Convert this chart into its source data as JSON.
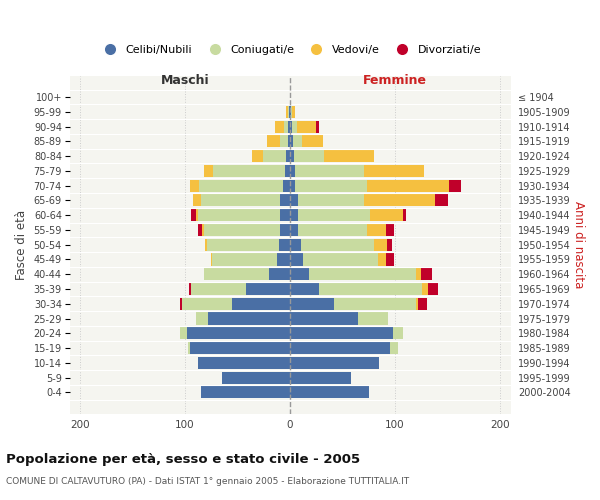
{
  "age_groups": [
    "0-4",
    "5-9",
    "10-14",
    "15-19",
    "20-24",
    "25-29",
    "30-34",
    "35-39",
    "40-44",
    "45-49",
    "50-54",
    "55-59",
    "60-64",
    "65-69",
    "70-74",
    "75-79",
    "80-84",
    "85-89",
    "90-94",
    "95-99",
    "100+"
  ],
  "birth_years": [
    "2000-2004",
    "1995-1999",
    "1990-1994",
    "1985-1989",
    "1980-1984",
    "1975-1979",
    "1970-1974",
    "1965-1969",
    "1960-1964",
    "1955-1959",
    "1950-1954",
    "1945-1949",
    "1940-1944",
    "1935-1939",
    "1930-1934",
    "1925-1929",
    "1920-1924",
    "1915-1919",
    "1910-1914",
    "1905-1909",
    "≤ 1904"
  ],
  "colors": {
    "celibi": "#4a6fa5",
    "coniugati": "#c8dba0",
    "vedovi": "#f5c040",
    "divorziati": "#c0002a"
  },
  "maschi": {
    "celibi": [
      85,
      65,
      88,
      95,
      98,
      78,
      55,
      42,
      20,
      12,
      11,
      10,
      10,
      10,
      7,
      5,
      4,
      2,
      2,
      1,
      0
    ],
    "coniugati": [
      0,
      0,
      0,
      2,
      7,
      12,
      48,
      52,
      62,
      62,
      68,
      72,
      78,
      75,
      80,
      68,
      22,
      8,
      4,
      1,
      0
    ],
    "vedovi": [
      0,
      0,
      0,
      0,
      0,
      0,
      0,
      0,
      0,
      1,
      2,
      2,
      2,
      7,
      8,
      9,
      10,
      12,
      8,
      2,
      0
    ],
    "divorziati": [
      0,
      0,
      0,
      0,
      0,
      0,
      2,
      2,
      0,
      0,
      0,
      4,
      4,
      0,
      0,
      0,
      0,
      0,
      0,
      0,
      0
    ]
  },
  "femmine": {
    "celibi": [
      75,
      58,
      85,
      95,
      98,
      65,
      42,
      28,
      18,
      12,
      10,
      8,
      8,
      8,
      5,
      5,
      4,
      3,
      2,
      1,
      0
    ],
    "coniugati": [
      0,
      0,
      0,
      8,
      10,
      28,
      78,
      98,
      102,
      72,
      70,
      65,
      68,
      62,
      68,
      65,
      28,
      8,
      5,
      1,
      0
    ],
    "vedovi": [
      0,
      0,
      0,
      0,
      0,
      0,
      2,
      5,
      5,
      7,
      12,
      18,
      32,
      68,
      78,
      58,
      48,
      20,
      18,
      3,
      0
    ],
    "divorziati": [
      0,
      0,
      0,
      0,
      0,
      0,
      8,
      10,
      10,
      8,
      5,
      8,
      2,
      12,
      12,
      0,
      0,
      0,
      3,
      0,
      0
    ]
  },
  "xlim": 210,
  "title": "Popolazione per età, sesso e stato civile - 2005",
  "subtitle": "COMUNE DI CALTAVUTURO (PA) - Dati ISTAT 1° gennaio 2005 - Elaborazione TUTTITALIA.IT",
  "ylabel_left": "Fasce di età",
  "ylabel_right": "Anni di nascita",
  "xlabel_left": "Maschi",
  "xlabel_right": "Femmine",
  "legend_labels": [
    "Celibi/Nubili",
    "Coniugati/e",
    "Vedovi/e",
    "Divorziati/e"
  ],
  "bg_color": "#f5f5f0"
}
